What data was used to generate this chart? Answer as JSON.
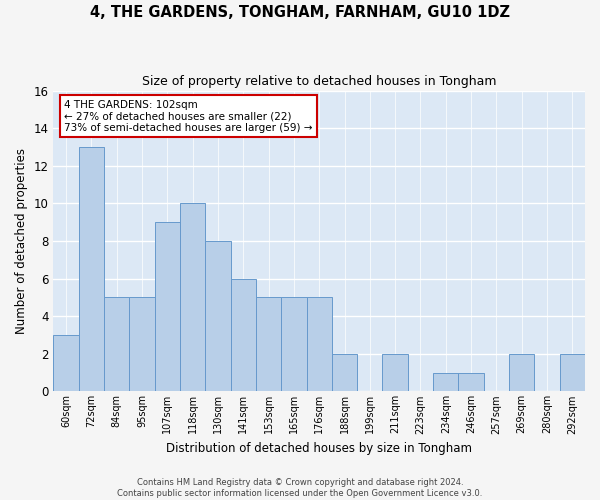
{
  "title": "4, THE GARDENS, TONGHAM, FARNHAM, GU10 1DZ",
  "subtitle": "Size of property relative to detached houses in Tongham",
  "xlabel": "Distribution of detached houses by size in Tongham",
  "ylabel": "Number of detached properties",
  "categories": [
    "60sqm",
    "72sqm",
    "84sqm",
    "95sqm",
    "107sqm",
    "118sqm",
    "130sqm",
    "141sqm",
    "153sqm",
    "165sqm",
    "176sqm",
    "188sqm",
    "199sqm",
    "211sqm",
    "223sqm",
    "234sqm",
    "246sqm",
    "257sqm",
    "269sqm",
    "280sqm",
    "292sqm"
  ],
  "values": [
    3,
    13,
    5,
    5,
    9,
    10,
    8,
    6,
    5,
    5,
    5,
    2,
    0,
    2,
    0,
    1,
    1,
    0,
    2,
    0,
    2
  ],
  "bar_color": "#b8cfe8",
  "bar_edge_color": "#6699cc",
  "ylim": [
    0,
    16
  ],
  "yticks": [
    0,
    2,
    4,
    6,
    8,
    10,
    12,
    14,
    16
  ],
  "annotation_box_text": "4 THE GARDENS: 102sqm\n← 27% of detached houses are smaller (22)\n73% of semi-detached houses are larger (59) →",
  "annotation_box_color": "#ffffff",
  "annotation_box_edgecolor": "#cc0000",
  "bg_color": "#dce8f5",
  "fig_bg_color": "#f5f5f5",
  "grid_color": "#ffffff",
  "footer1": "Contains HM Land Registry data © Crown copyright and database right 2024.",
  "footer2": "Contains public sector information licensed under the Open Government Licence v3.0."
}
